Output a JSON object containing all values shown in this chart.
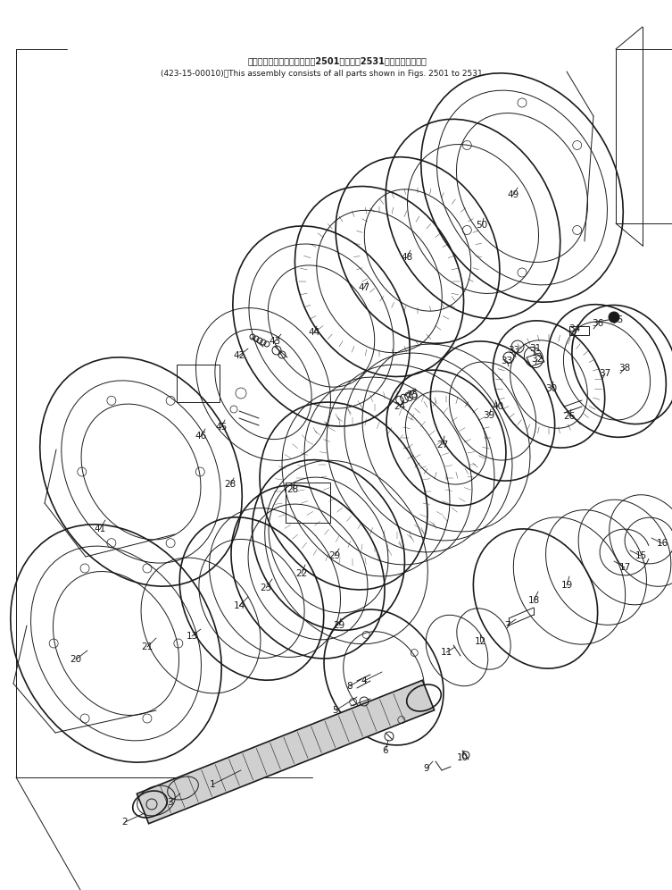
{
  "title_jp": "このアセンブリの構成品はㅦ2501図からㅦ2531図まで含みます。",
  "title_en": "(423-15-00010)：This assembly consists of all parts shown in Figs. 2501 to 2531.",
  "background_color": "#ffffff",
  "line_color": "#1a1a1a",
  "fig_width": 7.53,
  "fig_height": 9.96,
  "dpi": 100
}
